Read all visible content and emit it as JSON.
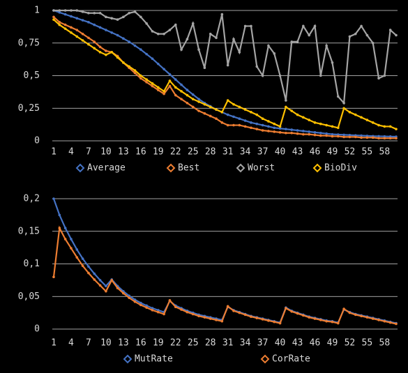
{
  "chart_data": [
    {
      "type": "line",
      "categories": [
        1,
        null,
        null,
        4,
        null,
        null,
        7,
        null,
        null,
        10,
        null,
        null,
        13,
        null,
        null,
        16,
        null,
        null,
        19,
        null,
        null,
        22,
        null,
        null,
        25,
        null,
        null,
        28,
        null,
        null,
        31,
        null,
        null,
        34,
        null,
        null,
        37,
        null,
        null,
        40,
        null,
        null,
        43,
        null,
        null,
        46,
        null,
        null,
        49,
        null,
        null,
        52,
        null,
        null,
        55,
        null,
        null,
        58,
        null,
        null
      ],
      "ylim": [
        0,
        1
      ],
      "yticks": [
        0,
        {
          "value": 0.25,
          "label": "0,25"
        },
        {
          "value": 0.5,
          "label": "0,5"
        },
        {
          "value": 0.75,
          "label": "0,75"
        },
        1
      ],
      "grid": true,
      "legend": "bottom",
      "series": [
        {
          "name": "Average",
          "color": "#4472c4",
          "values": [
            1.0,
            0.985,
            0.97,
            0.955,
            0.94,
            0.925,
            0.91,
            0.89,
            0.87,
            0.85,
            0.83,
            0.81,
            0.785,
            0.76,
            0.73,
            0.7,
            0.665,
            0.63,
            0.59,
            0.55,
            0.51,
            0.47,
            0.43,
            0.39,
            0.355,
            0.32,
            0.29,
            0.265,
            0.24,
            0.22,
            0.2,
            0.185,
            0.17,
            0.155,
            0.14,
            0.13,
            0.12,
            0.11,
            0.1,
            0.095,
            0.09,
            0.085,
            0.08,
            0.075,
            0.07,
            0.065,
            0.06,
            0.055,
            0.05,
            0.048,
            0.046,
            0.044,
            0.042,
            0.04,
            0.038,
            0.036,
            0.035,
            0.034,
            0.033,
            0.032
          ]
        },
        {
          "name": "Best",
          "color": "#ed7d31",
          "values": [
            0.95,
            0.91,
            0.89,
            0.87,
            0.85,
            0.82,
            0.79,
            0.76,
            0.72,
            0.69,
            0.68,
            0.65,
            0.6,
            0.56,
            0.52,
            0.48,
            0.45,
            0.42,
            0.39,
            0.36,
            0.42,
            0.35,
            0.32,
            0.29,
            0.26,
            0.23,
            0.21,
            0.19,
            0.17,
            0.14,
            0.12,
            0.12,
            0.12,
            0.11,
            0.1,
            0.09,
            0.08,
            0.075,
            0.07,
            0.065,
            0.06,
            0.06,
            0.055,
            0.05,
            0.05,
            0.045,
            0.04,
            0.04,
            0.035,
            0.035,
            0.03,
            0.03,
            0.03,
            0.025,
            0.025,
            0.025,
            0.02,
            0.02,
            0.02,
            0.02
          ]
        },
        {
          "name": "Worst",
          "color": "#a5a5a5",
          "values": [
            1,
            1,
            1,
            1,
            1,
            0.99,
            0.98,
            0.98,
            0.98,
            0.95,
            0.94,
            0.93,
            0.95,
            0.98,
            0.99,
            0.95,
            0.9,
            0.84,
            0.82,
            0.82,
            0.85,
            0.89,
            0.7,
            0.78,
            0.9,
            0.7,
            0.56,
            0.82,
            0.79,
            0.97,
            0.58,
            0.78,
            0.68,
            0.88,
            0.88,
            0.57,
            0.5,
            0.73,
            0.67,
            0.5,
            0.31,
            0.76,
            0.76,
            0.88,
            0.81,
            0.88,
            0.5,
            0.73,
            0.6,
            0.34,
            0.29,
            0.8,
            0.82,
            0.88,
            0.81,
            0.75,
            0.48,
            0.5,
            0.85,
            0.81
          ]
        },
        {
          "name": "BioDiv",
          "color": "#ffc000",
          "values": [
            0.93,
            0.89,
            0.86,
            0.83,
            0.8,
            0.77,
            0.74,
            0.71,
            0.68,
            0.66,
            0.68,
            0.64,
            0.6,
            0.57,
            0.54,
            0.5,
            0.47,
            0.44,
            0.41,
            0.38,
            0.46,
            0.41,
            0.38,
            0.35,
            0.32,
            0.3,
            0.28,
            0.26,
            0.24,
            0.22,
            0.31,
            0.28,
            0.26,
            0.24,
            0.22,
            0.2,
            0.17,
            0.15,
            0.13,
            0.11,
            0.26,
            0.23,
            0.2,
            0.18,
            0.16,
            0.14,
            0.13,
            0.12,
            0.11,
            0.1,
            0.25,
            0.22,
            0.2,
            0.18,
            0.16,
            0.14,
            0.12,
            0.11,
            0.11,
            0.09
          ]
        }
      ]
    },
    {
      "type": "line",
      "categories": [
        1,
        null,
        null,
        4,
        null,
        null,
        7,
        null,
        null,
        10,
        null,
        null,
        13,
        null,
        null,
        16,
        null,
        null,
        19,
        null,
        null,
        22,
        null,
        null,
        25,
        null,
        null,
        28,
        null,
        null,
        31,
        null,
        null,
        34,
        null,
        null,
        37,
        null,
        null,
        40,
        null,
        null,
        43,
        null,
        null,
        46,
        null,
        null,
        49,
        null,
        null,
        52,
        null,
        null,
        55,
        null,
        null,
        58,
        null,
        null
      ],
      "ylim": [
        0,
        0.2
      ],
      "yticks": [
        0,
        {
          "value": 0.05,
          "label": "0,05"
        },
        {
          "value": 0.1,
          "label": "0,1"
        },
        {
          "value": 0.15,
          "label": "0,15"
        },
        {
          "value": 0.2,
          "label": "0,2"
        }
      ],
      "grid": true,
      "legend": "bottom",
      "series": [
        {
          "name": "MutRate",
          "color": "#4472c4",
          "values": [
            0.2,
            0.175,
            0.155,
            0.138,
            0.122,
            0.108,
            0.096,
            0.085,
            0.075,
            0.066,
            0.076,
            0.066,
            0.058,
            0.051,
            0.045,
            0.04,
            0.036,
            0.032,
            0.029,
            0.026,
            0.043,
            0.036,
            0.032,
            0.028,
            0.025,
            0.022,
            0.02,
            0.018,
            0.016,
            0.014,
            0.034,
            0.029,
            0.026,
            0.023,
            0.02,
            0.018,
            0.016,
            0.014,
            0.012,
            0.01,
            0.033,
            0.028,
            0.025,
            0.022,
            0.019,
            0.017,
            0.015,
            0.013,
            0.012,
            0.01,
            0.03,
            0.026,
            0.023,
            0.021,
            0.019,
            0.017,
            0.015,
            0.013,
            0.011,
            0.009
          ]
        },
        {
          "name": "CorRate",
          "color": "#ed7d31",
          "values": [
            0.08,
            0.155,
            0.138,
            0.124,
            0.11,
            0.097,
            0.086,
            0.076,
            0.067,
            0.058,
            0.075,
            0.063,
            0.055,
            0.048,
            0.042,
            0.037,
            0.033,
            0.029,
            0.026,
            0.023,
            0.044,
            0.034,
            0.03,
            0.026,
            0.023,
            0.02,
            0.018,
            0.016,
            0.014,
            0.012,
            0.035,
            0.028,
            0.025,
            0.022,
            0.019,
            0.017,
            0.015,
            0.013,
            0.011,
            0.009,
            0.032,
            0.027,
            0.024,
            0.021,
            0.018,
            0.016,
            0.014,
            0.012,
            0.011,
            0.009,
            0.031,
            0.025,
            0.022,
            0.02,
            0.018,
            0.016,
            0.014,
            0.012,
            0.01,
            0.008
          ]
        }
      ]
    }
  ]
}
